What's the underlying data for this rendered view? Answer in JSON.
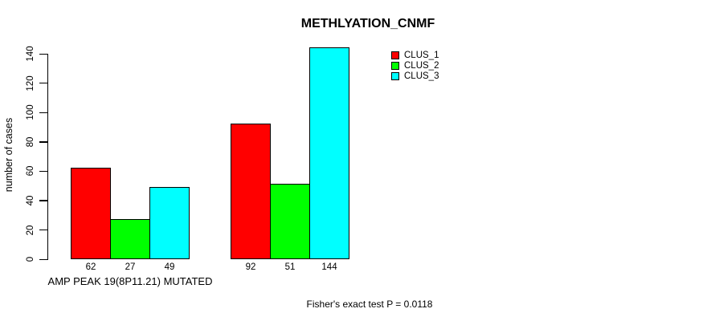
{
  "title": "METHLYATION_CNMF",
  "footer": "Fisher's exact test P = 0.0118",
  "colors": {
    "clus_1": "#FF0000",
    "clus_2": "#00FF00",
    "clus_3": "#00FFFF",
    "axis": "#000000",
    "background": "#FFFFFF"
  },
  "chart_data": {
    "type": "bar",
    "title": "METHLYATION_CNMF",
    "xlabel": "",
    "ylabel": "number of cases",
    "ylim": [
      0,
      140
    ],
    "yticks": [
      0,
      20,
      40,
      60,
      80,
      100,
      120,
      140
    ],
    "grid": false,
    "legend_position": "top-right",
    "categories": [
      "AMP PEAK 19(8P11.21) MUTATED",
      ""
    ],
    "series": [
      {
        "name": "CLUS_1",
        "color": "#FF0000",
        "values": [
          62,
          92
        ]
      },
      {
        "name": "CLUS_2",
        "color": "#00FF00",
        "values": [
          27,
          51
        ]
      },
      {
        "name": "CLUS_3",
        "color": "#00FFFF",
        "values": [
          49,
          144
        ]
      }
    ],
    "value_labels_shown": true,
    "annotation": "Fisher's exact test P = 0.0118"
  }
}
